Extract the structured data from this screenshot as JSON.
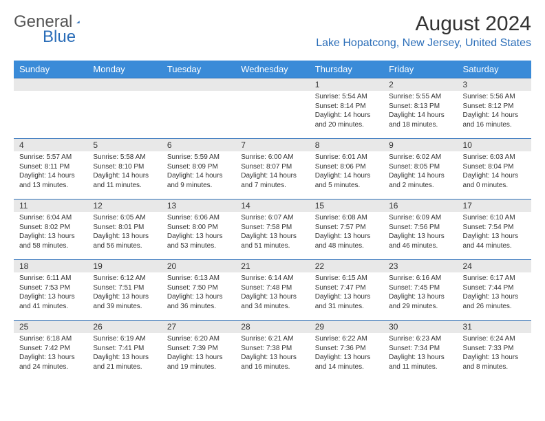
{
  "logo": {
    "text1": "General",
    "text2": "Blue"
  },
  "title": "August 2024",
  "location": "Lake Hopatcong, New Jersey, United States",
  "colors": {
    "header_bg": "#3a8bd8",
    "header_text": "#ffffff",
    "accent": "#2a6db8",
    "daynum_bg": "#e8e8e8",
    "body_text": "#333333"
  },
  "weekdays": [
    "Sunday",
    "Monday",
    "Tuesday",
    "Wednesday",
    "Thursday",
    "Friday",
    "Saturday"
  ],
  "weeks": [
    [
      null,
      null,
      null,
      null,
      {
        "d": "1",
        "sr": "5:54 AM",
        "ss": "8:14 PM",
        "dl": "14 hours and 20 minutes."
      },
      {
        "d": "2",
        "sr": "5:55 AM",
        "ss": "8:13 PM",
        "dl": "14 hours and 18 minutes."
      },
      {
        "d": "3",
        "sr": "5:56 AM",
        "ss": "8:12 PM",
        "dl": "14 hours and 16 minutes."
      }
    ],
    [
      {
        "d": "4",
        "sr": "5:57 AM",
        "ss": "8:11 PM",
        "dl": "14 hours and 13 minutes."
      },
      {
        "d": "5",
        "sr": "5:58 AM",
        "ss": "8:10 PM",
        "dl": "14 hours and 11 minutes."
      },
      {
        "d": "6",
        "sr": "5:59 AM",
        "ss": "8:09 PM",
        "dl": "14 hours and 9 minutes."
      },
      {
        "d": "7",
        "sr": "6:00 AM",
        "ss": "8:07 PM",
        "dl": "14 hours and 7 minutes."
      },
      {
        "d": "8",
        "sr": "6:01 AM",
        "ss": "8:06 PM",
        "dl": "14 hours and 5 minutes."
      },
      {
        "d": "9",
        "sr": "6:02 AM",
        "ss": "8:05 PM",
        "dl": "14 hours and 2 minutes."
      },
      {
        "d": "10",
        "sr": "6:03 AM",
        "ss": "8:04 PM",
        "dl": "14 hours and 0 minutes."
      }
    ],
    [
      {
        "d": "11",
        "sr": "6:04 AM",
        "ss": "8:02 PM",
        "dl": "13 hours and 58 minutes."
      },
      {
        "d": "12",
        "sr": "6:05 AM",
        "ss": "8:01 PM",
        "dl": "13 hours and 56 minutes."
      },
      {
        "d": "13",
        "sr": "6:06 AM",
        "ss": "8:00 PM",
        "dl": "13 hours and 53 minutes."
      },
      {
        "d": "14",
        "sr": "6:07 AM",
        "ss": "7:58 PM",
        "dl": "13 hours and 51 minutes."
      },
      {
        "d": "15",
        "sr": "6:08 AM",
        "ss": "7:57 PM",
        "dl": "13 hours and 48 minutes."
      },
      {
        "d": "16",
        "sr": "6:09 AM",
        "ss": "7:56 PM",
        "dl": "13 hours and 46 minutes."
      },
      {
        "d": "17",
        "sr": "6:10 AM",
        "ss": "7:54 PM",
        "dl": "13 hours and 44 minutes."
      }
    ],
    [
      {
        "d": "18",
        "sr": "6:11 AM",
        "ss": "7:53 PM",
        "dl": "13 hours and 41 minutes."
      },
      {
        "d": "19",
        "sr": "6:12 AM",
        "ss": "7:51 PM",
        "dl": "13 hours and 39 minutes."
      },
      {
        "d": "20",
        "sr": "6:13 AM",
        "ss": "7:50 PM",
        "dl": "13 hours and 36 minutes."
      },
      {
        "d": "21",
        "sr": "6:14 AM",
        "ss": "7:48 PM",
        "dl": "13 hours and 34 minutes."
      },
      {
        "d": "22",
        "sr": "6:15 AM",
        "ss": "7:47 PM",
        "dl": "13 hours and 31 minutes."
      },
      {
        "d": "23",
        "sr": "6:16 AM",
        "ss": "7:45 PM",
        "dl": "13 hours and 29 minutes."
      },
      {
        "d": "24",
        "sr": "6:17 AM",
        "ss": "7:44 PM",
        "dl": "13 hours and 26 minutes."
      }
    ],
    [
      {
        "d": "25",
        "sr": "6:18 AM",
        "ss": "7:42 PM",
        "dl": "13 hours and 24 minutes."
      },
      {
        "d": "26",
        "sr": "6:19 AM",
        "ss": "7:41 PM",
        "dl": "13 hours and 21 minutes."
      },
      {
        "d": "27",
        "sr": "6:20 AM",
        "ss": "7:39 PM",
        "dl": "13 hours and 19 minutes."
      },
      {
        "d": "28",
        "sr": "6:21 AM",
        "ss": "7:38 PM",
        "dl": "13 hours and 16 minutes."
      },
      {
        "d": "29",
        "sr": "6:22 AM",
        "ss": "7:36 PM",
        "dl": "13 hours and 14 minutes."
      },
      {
        "d": "30",
        "sr": "6:23 AM",
        "ss": "7:34 PM",
        "dl": "13 hours and 11 minutes."
      },
      {
        "d": "31",
        "sr": "6:24 AM",
        "ss": "7:33 PM",
        "dl": "13 hours and 8 minutes."
      }
    ]
  ],
  "labels": {
    "sunrise": "Sunrise:",
    "sunset": "Sunset:",
    "daylight": "Daylight:"
  }
}
